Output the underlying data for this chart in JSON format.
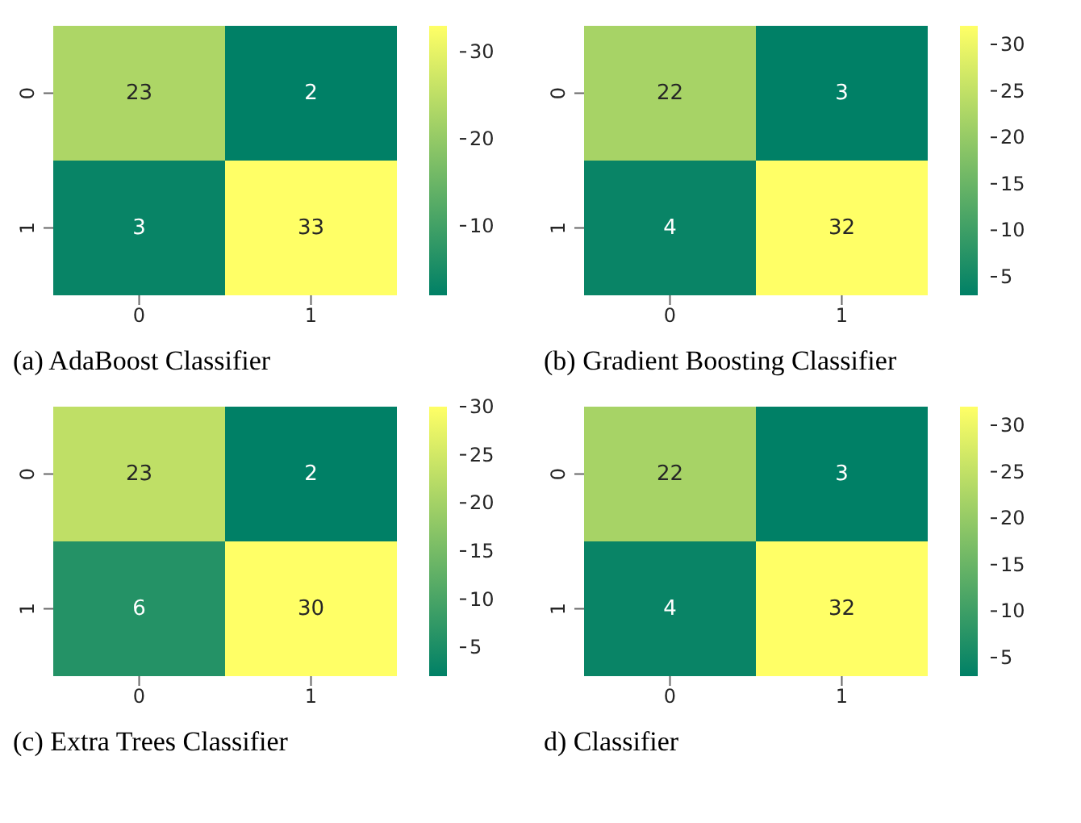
{
  "chart_data": [
    {
      "type": "heatmap",
      "title": "(a) AdaBoost Classifier",
      "categories": [
        "0",
        "1"
      ],
      "y_categories": [
        "0",
        "1"
      ],
      "cells": [
        [
          23,
          2
        ],
        [
          3,
          33
        ]
      ],
      "data_labels": true,
      "clim": [
        2,
        33
      ],
      "cticks": [
        10,
        20,
        30
      ]
    },
    {
      "type": "heatmap",
      "title": "(b) Gradient Boosting Classifier",
      "categories": [
        "0",
        "1"
      ],
      "y_categories": [
        "0",
        "1"
      ],
      "cells": [
        [
          22,
          3
        ],
        [
          4,
          32
        ]
      ],
      "data_labels": true,
      "clim": [
        3,
        32
      ],
      "cticks": [
        5,
        10,
        15,
        20,
        25,
        30
      ]
    },
    {
      "type": "heatmap",
      "title": "(c) Extra Trees Classifier",
      "categories": [
        "0",
        "1"
      ],
      "y_categories": [
        "0",
        "1"
      ],
      "cells": [
        [
          23,
          2
        ],
        [
          6,
          30
        ]
      ],
      "data_labels": true,
      "clim": [
        2,
        30
      ],
      "cticks": [
        5,
        10,
        15,
        20,
        25,
        30
      ]
    },
    {
      "type": "heatmap",
      "title": "d) Classifier",
      "categories": [
        "0",
        "1"
      ],
      "y_categories": [
        "0",
        "1"
      ],
      "cells": [
        [
          22,
          3
        ],
        [
          4,
          32
        ]
      ],
      "data_labels": true,
      "clim": [
        3,
        32
      ],
      "cticks": [
        5,
        10,
        15,
        20,
        25,
        30
      ]
    }
  ]
}
